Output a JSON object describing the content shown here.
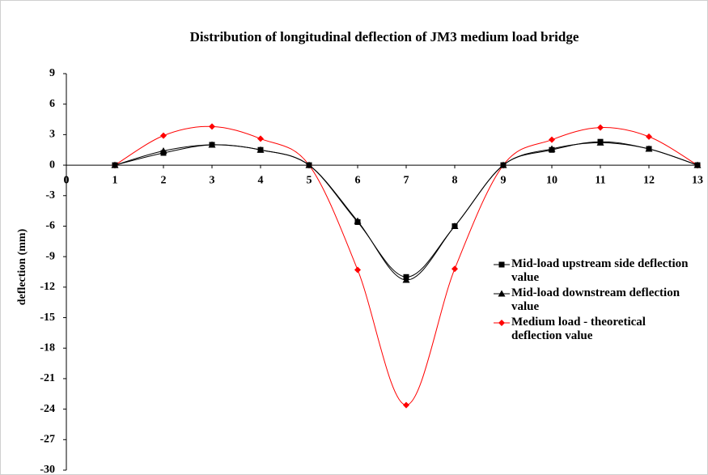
{
  "chart_data": {
    "type": "line",
    "title": "Distribution of longitudinal deflection of JM3 medium load bridge",
    "y_label": "deflection (mm)",
    "x": [
      1,
      2,
      3,
      4,
      5,
      6,
      7,
      8,
      9,
      10,
      11,
      12,
      13
    ],
    "series": [
      {
        "name": "Mid-load upstream side deflection value",
        "color": "#000000",
        "marker": "square",
        "values": [
          0,
          1.2,
          2.0,
          1.5,
          0,
          -5.6,
          -11.0,
          -6.0,
          0,
          1.5,
          2.3,
          1.6,
          0
        ]
      },
      {
        "name": "Mid-load  downstream deflection value",
        "color": "#000000",
        "marker": "triangle",
        "values": [
          0,
          1.4,
          2.0,
          1.5,
          0,
          -5.5,
          -11.3,
          -6.0,
          0,
          1.6,
          2.2,
          1.6,
          0
        ]
      },
      {
        "name": "Medium load - theoretical deflection value",
        "color": "#ff0000",
        "marker": "diamond",
        "values": [
          0,
          2.9,
          3.8,
          2.6,
          0,
          -10.3,
          -23.6,
          -10.2,
          0,
          2.5,
          3.7,
          2.8,
          0
        ]
      }
    ],
    "xlim": [
      0,
      13
    ],
    "xticks": [
      0,
      1,
      2,
      3,
      4,
      5,
      6,
      7,
      8,
      9,
      10,
      11,
      12,
      13
    ],
    "ylim": [
      -30,
      9
    ],
    "yticks": [
      9,
      6,
      3,
      0,
      -3,
      -6,
      -9,
      -12,
      -15,
      -18,
      -21,
      -24,
      -27,
      -30
    ],
    "grid": false,
    "legend": "right"
  }
}
